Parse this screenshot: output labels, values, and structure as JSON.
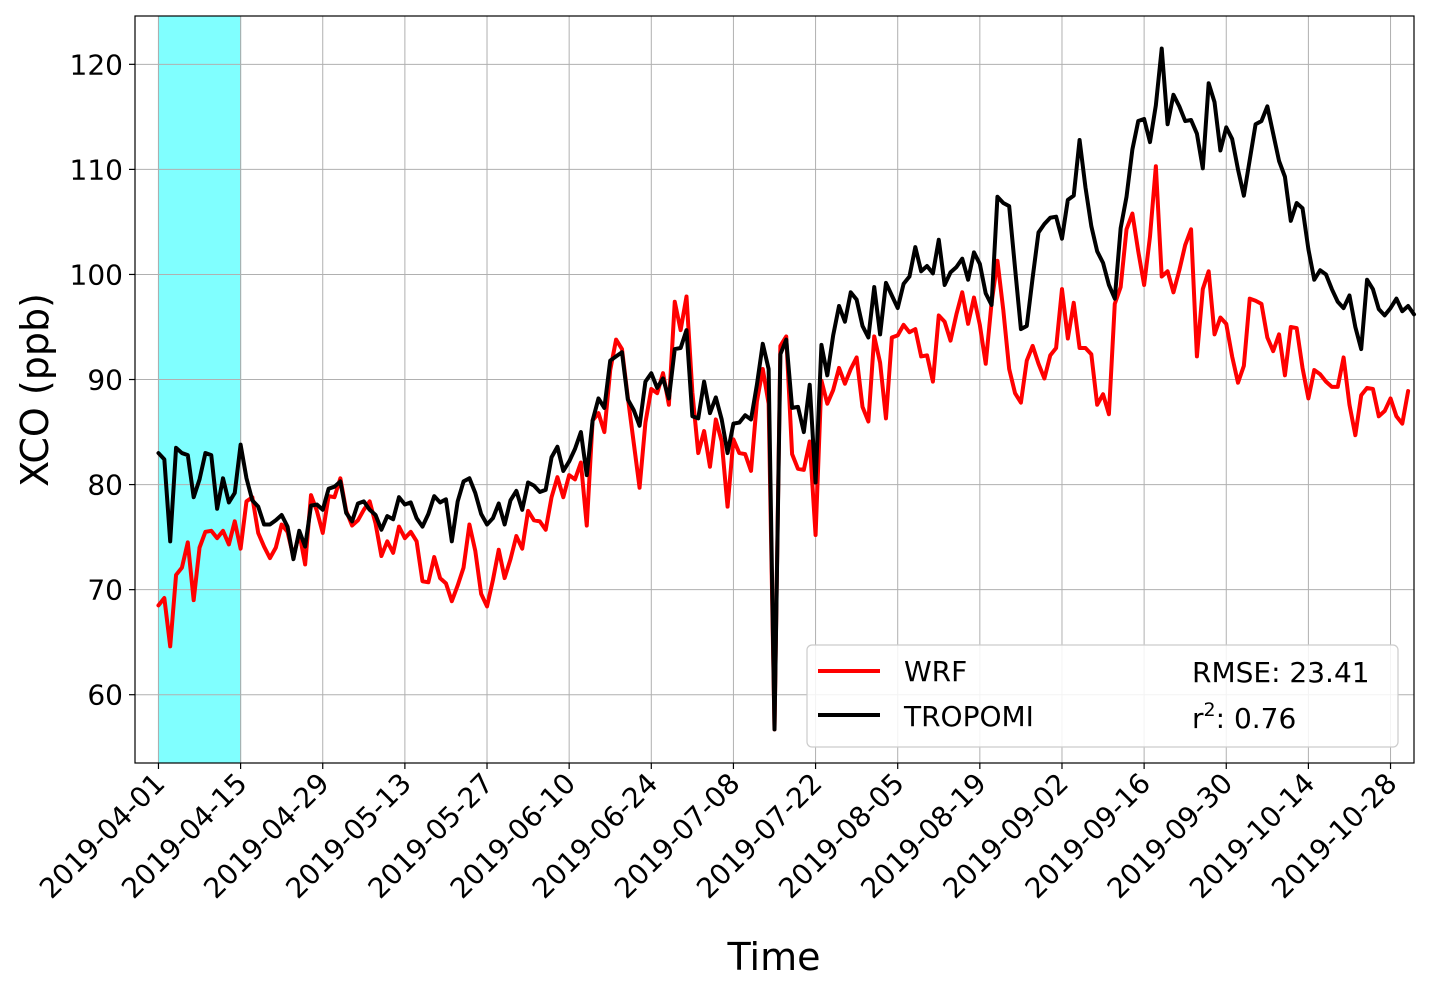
{
  "chart_data": {
    "type": "line",
    "xlabel": "Time",
    "ylabel": "XCO (ppb)",
    "ylim": [
      53.5,
      124.6
    ],
    "y_ticks": [
      60,
      70,
      80,
      90,
      100,
      110,
      120
    ],
    "x_range": [
      "2019-03-28",
      "2019-11-01"
    ],
    "x_ticks": [
      "2019-04-01",
      "2019-04-15",
      "2019-04-29",
      "2019-05-13",
      "2019-05-27",
      "2019-06-10",
      "2019-06-24",
      "2019-07-08",
      "2019-07-22",
      "2019-08-05",
      "2019-08-19",
      "2019-09-02",
      "2019-09-16",
      "2019-09-30",
      "2019-10-14",
      "2019-10-28"
    ],
    "grid": true,
    "highlight_span": {
      "from": "2019-04-01",
      "to": "2019-04-15",
      "color": "#80ffff"
    },
    "legend_location": "lower-right",
    "stats": {
      "rmse_text": "RMSE: 23.41",
      "r2_base": "r",
      "r2_sup": "2",
      "r2_value": ": 0.76"
    },
    "x_start": "2019-04-01",
    "x_step_days": 1,
    "series": [
      {
        "name": "WRF",
        "color": "#ff0000",
        "values": [
          68.5,
          69.2,
          64.6,
          71.4,
          72.1,
          74.5,
          69.0,
          74.0,
          75.5,
          75.6,
          74.9,
          75.6,
          74.3,
          76.5,
          73.9,
          78.4,
          78.8,
          75.4,
          74.1,
          73.0,
          74.0,
          76.2,
          75.5,
          73.1,
          75.4,
          72.4,
          79.0,
          77.5,
          75.4,
          78.9,
          78.8,
          80.6,
          77.5,
          76.1,
          76.6,
          77.6,
          78.4,
          76.3,
          73.2,
          74.6,
          73.5,
          76.0,
          74.9,
          75.5,
          74.6,
          70.8,
          70.7,
          73.1,
          71.1,
          70.6,
          68.9,
          70.4,
          72.1,
          76.2,
          73.7,
          69.6,
          68.4,
          70.9,
          73.8,
          71.1,
          72.9,
          75.1,
          73.9,
          77.5,
          76.6,
          76.5,
          75.7,
          78.8,
          80.7,
          78.8,
          80.9,
          80.5,
          82.1,
          76.1,
          86.1,
          86.8,
          85.0,
          90.9,
          93.8,
          92.9,
          88.3,
          84.0,
          79.7,
          85.9,
          89.1,
          88.7,
          90.6,
          87.6,
          97.4,
          94.7,
          97.9,
          88.8,
          83.0,
          85.1,
          81.7,
          86.2,
          84.1,
          77.9,
          84.3,
          83.0,
          82.9,
          81.3,
          87.9,
          91.0,
          87.7,
          56.7,
          93.2,
          94.1,
          82.9,
          81.5,
          81.4,
          84.1,
          75.2,
          89.9,
          87.7,
          89.0,
          91.1,
          89.6,
          91.0,
          92.1,
          87.4,
          86.0,
          94.1,
          91.6,
          86.3,
          94.0,
          94.2,
          95.2,
          94.5,
          94.8,
          92.2,
          92.3,
          89.8,
          96.1,
          95.5,
          93.7,
          96.2,
          98.3,
          95.3,
          97.8,
          95.2,
          91.5,
          97.3,
          101.3,
          96.6,
          91.0,
          88.7,
          87.8,
          91.8,
          93.2,
          91.5,
          90.1,
          92.3,
          93.0,
          98.6,
          93.9,
          97.3,
          93.0,
          93.0,
          92.4,
          87.6,
          88.6,
          86.7,
          97.2,
          98.8,
          104.3,
          105.8,
          102.2,
          99.0,
          103.6,
          110.3,
          99.8,
          100.3,
          98.3,
          100.4,
          102.8,
          104.3,
          92.2,
          98.6,
          100.3,
          94.3,
          95.9,
          95.3,
          92.2,
          89.7,
          91.3,
          97.7,
          97.5,
          97.2,
          94.0,
          92.7,
          94.3,
          90.4,
          95.0,
          94.9,
          91.1,
          88.2,
          90.9,
          90.5,
          89.8,
          89.3,
          89.3,
          92.1,
          87.6,
          84.7,
          88.5,
          89.2,
          89.1,
          86.5,
          87.0,
          88.2,
          86.5,
          85.8,
          88.9
        ]
      },
      {
        "name": "TROPOMI",
        "color": "#000000",
        "values": [
          83.0,
          82.4,
          74.6,
          83.5,
          83.0,
          82.8,
          78.8,
          80.5,
          83.0,
          82.8,
          77.7,
          80.6,
          78.3,
          79.2,
          83.8,
          80.6,
          78.5,
          77.9,
          76.2,
          76.2,
          76.6,
          77.1,
          76.0,
          72.9,
          75.6,
          74.1,
          78.0,
          78.1,
          77.6,
          79.6,
          79.8,
          80.3,
          77.3,
          76.5,
          78.2,
          78.4,
          77.6,
          77.1,
          75.7,
          77.0,
          76.7,
          78.8,
          78.1,
          78.3,
          76.8,
          76.0,
          77.2,
          78.9,
          78.3,
          78.6,
          74.6,
          78.4,
          80.3,
          80.6,
          79.2,
          77.2,
          76.2,
          76.8,
          78.2,
          76.2,
          78.5,
          79.4,
          77.6,
          80.2,
          79.9,
          79.3,
          79.5,
          82.6,
          83.6,
          81.3,
          82.2,
          83.4,
          85.0,
          80.9,
          86.1,
          88.2,
          87.3,
          91.8,
          92.2,
          92.6,
          88.1,
          87.1,
          85.6,
          89.8,
          90.6,
          89.2,
          90.1,
          88.2,
          92.9,
          93.0,
          94.7,
          86.5,
          86.3,
          89.8,
          86.8,
          88.3,
          86.2,
          83.0,
          85.8,
          85.9,
          86.6,
          86.2,
          89.5,
          93.4,
          91.0,
          56.7,
          92.4,
          93.8,
          87.3,
          87.4,
          85.0,
          89.5,
          80.2,
          93.3,
          90.4,
          94.2,
          97.0,
          95.5,
          98.3,
          97.6,
          95.1,
          94.0,
          98.8,
          94.3,
          99.2,
          98.0,
          96.8,
          99.1,
          99.8,
          102.6,
          100.3,
          100.8,
          100.1,
          103.3,
          99.0,
          100.2,
          100.7,
          101.5,
          99.5,
          102.1,
          101.0,
          98.2,
          97.1,
          107.4,
          106.8,
          106.5,
          100.6,
          94.8,
          95.1,
          99.7,
          104.0,
          104.8,
          105.4,
          105.5,
          103.4,
          107.1,
          107.5,
          112.8,
          108.3,
          104.6,
          102.2,
          101.1,
          99.0,
          97.7,
          104.4,
          107.4,
          111.9,
          114.6,
          114.8,
          112.6,
          116.1,
          121.5,
          114.3,
          117.1,
          116.0,
          114.6,
          114.7,
          113.4,
          110.1,
          118.2,
          116.4,
          111.8,
          114.0,
          112.9,
          110.0,
          107.5,
          110.9,
          114.3,
          114.6,
          116.0,
          113.4,
          110.8,
          109.3,
          105.1,
          106.8,
          106.3,
          102.4,
          99.5,
          100.4,
          100.0,
          98.6,
          97.4,
          96.8,
          98.0,
          95.0,
          92.9,
          99.5,
          98.6,
          96.7,
          96.1,
          96.8,
          97.7,
          96.5,
          97.0,
          96.2
        ]
      }
    ]
  }
}
